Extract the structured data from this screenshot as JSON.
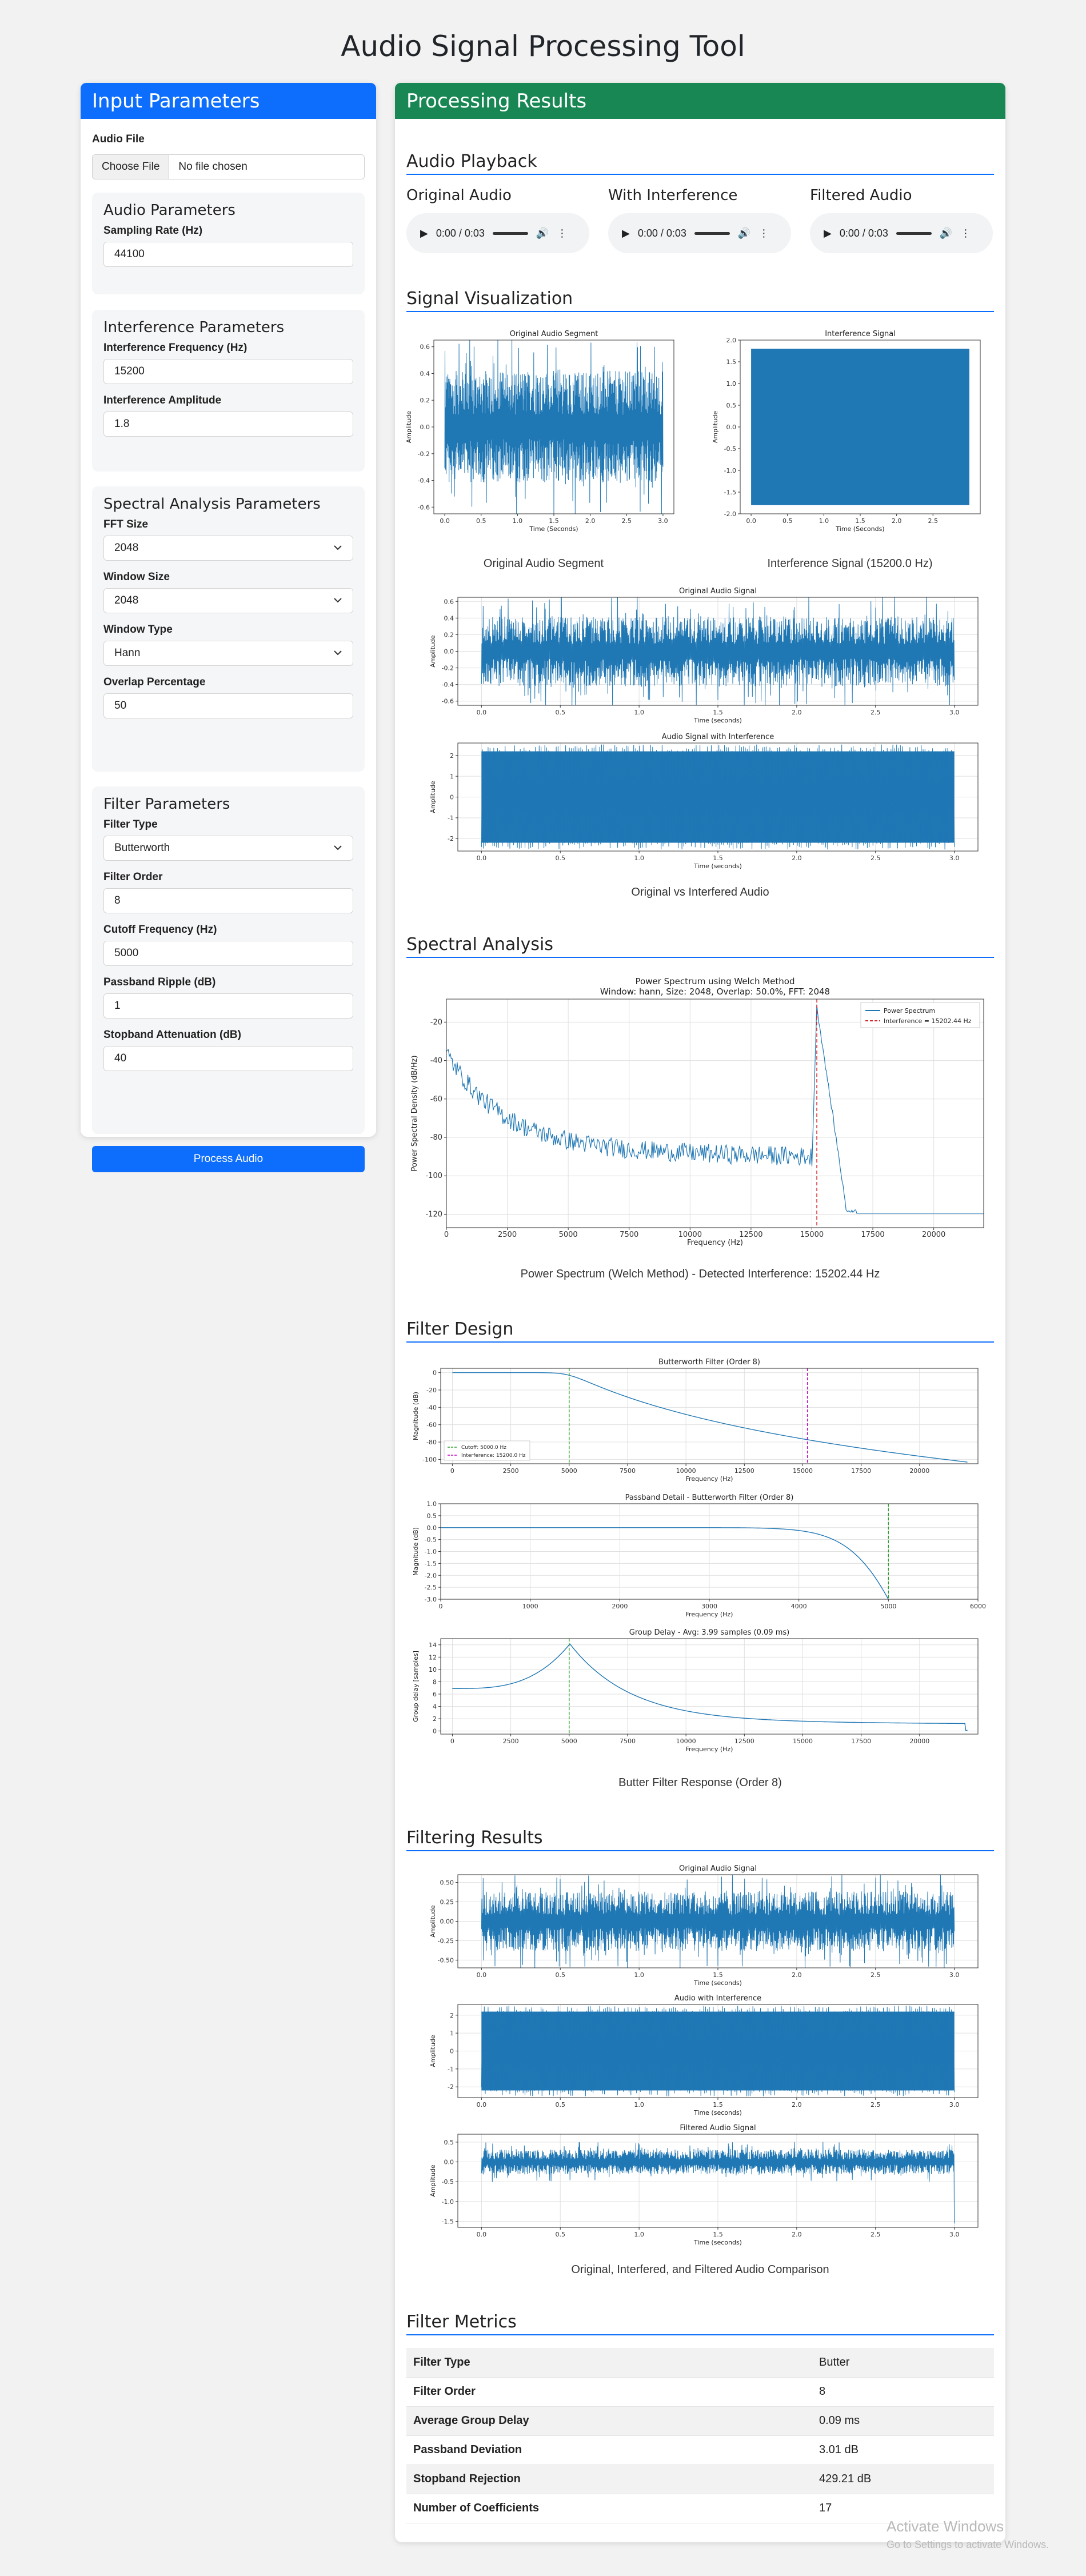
{
  "app": {
    "title": "Audio Signal Processing Tool"
  },
  "input_panel": {
    "header": "Input Parameters",
    "audio_file": {
      "label": "Audio File",
      "button": "Choose File",
      "status": "No file chosen"
    },
    "audio_params": {
      "title": "Audio Parameters",
      "sampling_rate": {
        "label": "Sampling Rate (Hz)",
        "value": "44100"
      }
    },
    "interference_params": {
      "title": "Interference Parameters",
      "frequency": {
        "label": "Interference Frequency (Hz)",
        "value": "15200"
      },
      "amplitude": {
        "label": "Interference Amplitude",
        "value": "1.8"
      }
    },
    "spectral_params": {
      "title": "Spectral Analysis Parameters",
      "fft_size": {
        "label": "FFT Size",
        "value": "2048"
      },
      "window_size": {
        "label": "Window Size",
        "value": "2048"
      },
      "window_type": {
        "label": "Window Type",
        "value": "Hann"
      },
      "overlap": {
        "label": "Overlap Percentage",
        "value": "50"
      }
    },
    "filter_params": {
      "title": "Filter Parameters",
      "filter_type": {
        "label": "Filter Type",
        "value": "Butterworth"
      },
      "filter_order": {
        "label": "Filter Order",
        "value": "8"
      },
      "cutoff": {
        "label": "Cutoff Frequency (Hz)",
        "value": "5000"
      },
      "passband_ripple": {
        "label": "Passband Ripple (dB)",
        "value": "1"
      },
      "stopband_atten": {
        "label": "Stopband Attenuation (dB)",
        "value": "40"
      }
    },
    "process_button": "Process Audio"
  },
  "results_panel": {
    "header": "Processing Results",
    "playback": {
      "title": "Audio Playback",
      "players": [
        {
          "title": "Original Audio",
          "time": "0:00 / 0:03"
        },
        {
          "title": "With Interference",
          "time": "0:00 / 0:03"
        },
        {
          "title": "Filtered Audio",
          "time": "0:00 / 0:03"
        }
      ]
    },
    "visualization": {
      "title": "Signal Visualization",
      "caption_segment": "Original Audio Segment",
      "caption_interference": "Interference Signal (15200.0 Hz)",
      "caption_compare": "Original vs Interfered Audio"
    },
    "spectral": {
      "title": "Spectral Analysis",
      "caption": "Power Spectrum (Welch Method) - Detected Interference: 15202.44 Hz"
    },
    "filter_design": {
      "title": "Filter Design",
      "caption": "Butter Filter Response (Order 8)"
    },
    "filtering_results": {
      "title": "Filtering Results",
      "caption": "Original, Interfered, and Filtered Audio Comparison"
    },
    "metrics": {
      "title": "Filter Metrics",
      "rows": [
        {
          "key": "Filter Type",
          "value": "Butter"
        },
        {
          "key": "Filter Order",
          "value": "8"
        },
        {
          "key": "Average Group Delay",
          "value": "0.09 ms"
        },
        {
          "key": "Passband Deviation",
          "value": "3.01 dB"
        },
        {
          "key": "Stopband Rejection",
          "value": "429.21 dB"
        },
        {
          "key": "Number of Coefficients",
          "value": "17"
        }
      ]
    }
  },
  "watermark": {
    "line1": "Activate Windows",
    "line2": "Go to Settings to activate Windows."
  },
  "colors": {
    "primary": "#0d6efd",
    "success": "#198754",
    "plot": "#1f77b4",
    "interference_line": "#d62728",
    "cutoff_line": "#2ca02c",
    "interf_marker": "#c000c0"
  },
  "chart_data": [
    {
      "id": "seg",
      "type": "line",
      "title": "Original Audio Segment",
      "xlabel": "Time (Seconds)",
      "ylabel": "Amplitude",
      "xlim": [
        -0.15,
        3.15
      ],
      "ylim": [
        -0.65,
        0.65
      ],
      "xticks": [
        "0.0",
        "0.5",
        "1.0",
        "1.5",
        "2.0",
        "2.5",
        "3.0"
      ],
      "yticks": [
        "0.6",
        "0.4",
        "0.2",
        "0.0",
        "-0.2",
        "-0.4",
        "-0.6"
      ],
      "signal": {
        "kind": "noise",
        "x0": 0,
        "x1": 3,
        "amp": 0.6,
        "n": 900
      },
      "grid": false
    },
    {
      "id": "intf",
      "type": "line",
      "title": "Interference Signal",
      "xlabel": "Time (Seconds)",
      "ylabel": "Amplitude",
      "xlim": [
        -0.15,
        3.15
      ],
      "ylim": [
        -2.0,
        2.0
      ],
      "xticks": [
        "0.0",
        "0.5",
        "1.0",
        "1.5",
        "2.0",
        "2.5"
      ],
      "yticks": [
        "2.0",
        "1.5",
        "1.0",
        "0.5",
        "0.0",
        "-0.5",
        "-1.0",
        "-1.5",
        "-2.0"
      ],
      "signal": {
        "kind": "band",
        "x0": 0,
        "x1": 3,
        "amp": 1.8
      },
      "grid": false
    },
    {
      "id": "orig1",
      "type": "line",
      "title": "Original Audio Signal",
      "xlabel": "Time (seconds)",
      "ylabel": "Amplitude",
      "xlim": [
        -0.15,
        3.15
      ],
      "ylim": [
        -0.65,
        0.65
      ],
      "xticks": [
        "0.0",
        "0.5",
        "1.0",
        "1.5",
        "2.0",
        "2.5",
        "3.0"
      ],
      "yticks": [
        "0.6",
        "0.4",
        "0.2",
        "0.0",
        "-0.2",
        "-0.4",
        "-0.6"
      ],
      "signal": {
        "kind": "noise",
        "x0": 0,
        "x1": 3,
        "amp": 0.6,
        "n": 1400
      },
      "grid": true
    },
    {
      "id": "interf1",
      "type": "line",
      "title": "Audio Signal with Interference",
      "xlabel": "Time (seconds)",
      "ylabel": "Amplitude",
      "xlim": [
        -0.15,
        3.15
      ],
      "ylim": [
        -2.6,
        2.6
      ],
      "xticks": [
        "0.0",
        "0.5",
        "1.0",
        "1.5",
        "2.0",
        "2.5",
        "3.0"
      ],
      "yticks": [
        "2",
        "1",
        "0",
        "-1",
        "-2"
      ],
      "signal": {
        "kind": "band",
        "x0": 0,
        "x1": 3,
        "amp": 2.2
      },
      "grid": true
    },
    {
      "id": "psd",
      "type": "line",
      "title": "Power Spectrum using Welch Method",
      "subtitle": "Window: hann, Size: 2048, Overlap: 50.0%, FFT: 2048",
      "xlabel": "Frequency (Hz)",
      "ylabel": "Power Spectral Density (dB/Hz)",
      "xlim": [
        0,
        22050
      ],
      "ylim": [
        -127,
        -8
      ],
      "xticks": [
        "0",
        "2500",
        "5000",
        "7500",
        "10000",
        "12500",
        "15000",
        "17500",
        "20000"
      ],
      "yticks": [
        "-20",
        "-40",
        "-60",
        "-80",
        "-100",
        "-120"
      ],
      "legend": [
        "Power Spectrum",
        "Interference = 15202.44 Hz"
      ],
      "legend_position": "top-right",
      "signal": {
        "kind": "psd"
      },
      "grid": true
    },
    {
      "id": "fresp",
      "type": "line",
      "title": "Butterworth Filter (Order 8)",
      "xlabel": "Frequency (Hz)",
      "ylabel": "Magnitude (dB)",
      "xlim": [
        -500,
        22500
      ],
      "ylim": [
        -105,
        5
      ],
      "xticks": [
        "0",
        "2500",
        "5000",
        "7500",
        "10000",
        "12500",
        "15000",
        "17500",
        "20000"
      ],
      "yticks": [
        "0",
        "-20",
        "-40",
        "-60",
        "-80",
        "-100"
      ],
      "legend": [
        "Cutoff: 5000.0 Hz",
        "Interference: 15200.0 Hz"
      ],
      "legend_position": "bottom-left",
      "signal": {
        "kind": "butter",
        "fc": 5000,
        "order": 8
      },
      "grid": true
    },
    {
      "id": "passband",
      "type": "line",
      "title": "Passband Detail - Butterworth Filter (Order 8)",
      "xlabel": "Frequency (Hz)",
      "ylabel": "Magnitude (dB)",
      "xlim": [
        0,
        6000
      ],
      "ylim": [
        -3.0,
        1.0
      ],
      "xticks": [
        "0",
        "1000",
        "2000",
        "3000",
        "4000",
        "5000",
        "6000"
      ],
      "yticks": [
        "1.0",
        "0.5",
        "0.0",
        "-0.5",
        "-1.0",
        "-1.5",
        "-2.0",
        "-2.5",
        "-3.0"
      ],
      "signal": {
        "kind": "butter_pass",
        "fc": 5000,
        "order": 8
      },
      "grid": true
    },
    {
      "id": "gdelay",
      "type": "line",
      "title": "Group Delay - Avg: 3.99 samples (0.09 ms)",
      "xlabel": "Frequency (Hz)",
      "ylabel": "Group delay [samples]",
      "xlim": [
        -500,
        22500
      ],
      "ylim": [
        -0.5,
        15
      ],
      "xticks": [
        "0",
        "2500",
        "5000",
        "7500",
        "10000",
        "12500",
        "15000",
        "17500",
        "20000"
      ],
      "yticks": [
        "14",
        "12",
        "10",
        "8",
        "6",
        "4",
        "2",
        "0"
      ],
      "signal": {
        "kind": "gdelay"
      },
      "grid": true
    },
    {
      "id": "orig2",
      "type": "line",
      "title": "Original Audio Signal",
      "xlabel": "Time (seconds)",
      "ylabel": "Amplitude",
      "xlim": [
        -0.15,
        3.15
      ],
      "ylim": [
        -0.6,
        0.6
      ],
      "xticks": [
        "0.0",
        "0.5",
        "1.0",
        "1.5",
        "2.0",
        "2.5",
        "3.0"
      ],
      "yticks": [
        "0.50",
        "0.25",
        "0.00",
        "-0.25",
        "-0.50"
      ],
      "signal": {
        "kind": "noise",
        "x0": 0,
        "x1": 3,
        "amp": 0.55,
        "n": 1400
      },
      "grid": true
    },
    {
      "id": "interf2",
      "type": "line",
      "title": "Audio with Interference",
      "xlabel": "Time (seconds)",
      "ylabel": "Amplitude",
      "xlim": [
        -0.15,
        3.15
      ],
      "ylim": [
        -2.6,
        2.6
      ],
      "xticks": [
        "0.0",
        "0.5",
        "1.0",
        "1.5",
        "2.0",
        "2.5",
        "3.0"
      ],
      "yticks": [
        "2",
        "1",
        "0",
        "-1",
        "-2"
      ],
      "signal": {
        "kind": "band",
        "x0": 0,
        "x1": 3,
        "amp": 2.2
      },
      "grid": true
    },
    {
      "id": "filt",
      "type": "line",
      "title": "Filtered Audio Signal",
      "xlabel": "Time (seconds)",
      "ylabel": "Amplitude",
      "xlim": [
        -0.15,
        3.15
      ],
      "ylim": [
        -1.65,
        0.7
      ],
      "xticks": [
        "0.0",
        "0.5",
        "1.0",
        "1.5",
        "2.0",
        "2.5",
        "3.0"
      ],
      "yticks": [
        "0.5",
        "0.0",
        "-0.5",
        "-1.0",
        "-1.5"
      ],
      "signal": {
        "kind": "noise_spike",
        "x0": 0,
        "x1": 3,
        "amp": 0.45,
        "n": 1400
      },
      "grid": true
    }
  ]
}
